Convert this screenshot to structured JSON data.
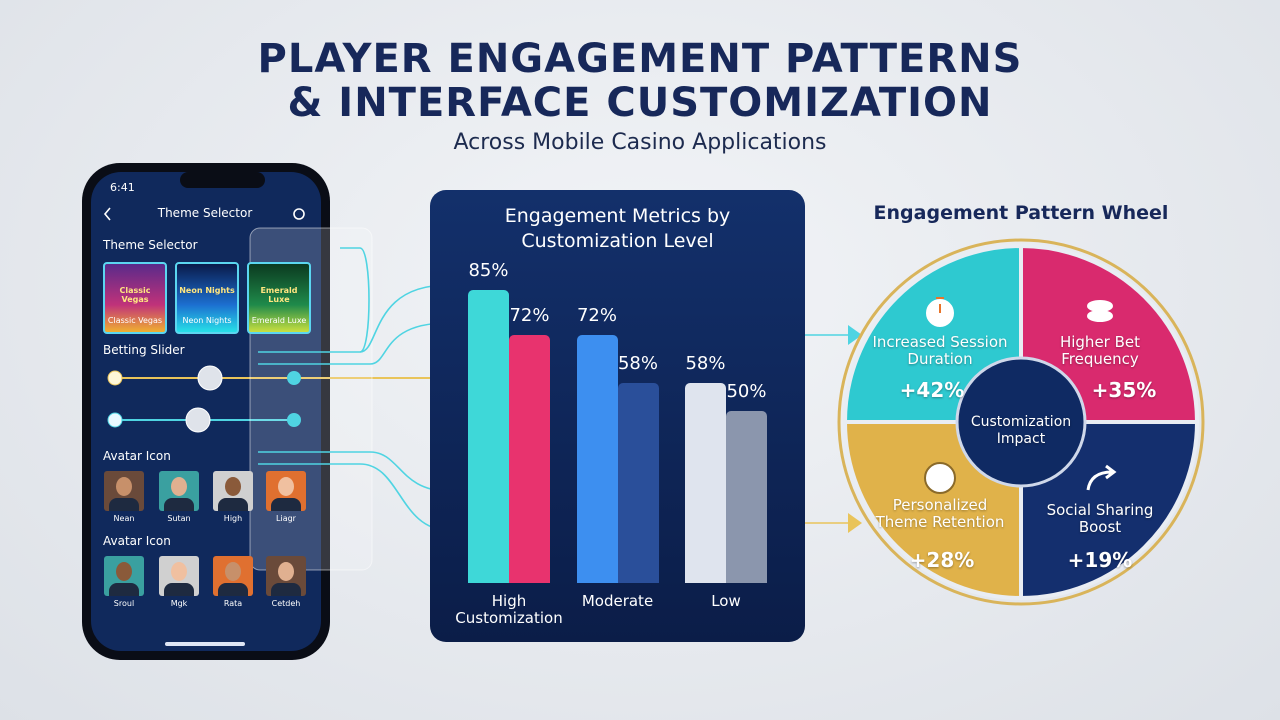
{
  "header": {
    "title_lines": [
      "PLAYER ENGAGEMENT PATTERNS",
      "& INTERFACE CUSTOMIZATION"
    ],
    "subtitle": "Across Mobile Casino Applications"
  },
  "phone": {
    "time": "6:41",
    "screen_title": "Theme Selector",
    "theme_section": "Theme Selector",
    "themes": [
      {
        "banner": "Classic Vegas",
        "caption": "Classic Vegas"
      },
      {
        "banner": "Neon Nights",
        "caption": "Neon Nights"
      },
      {
        "banner": "Emerald Luxe",
        "caption": "Emerald Luxe"
      }
    ],
    "slider_section": "Betting Slider",
    "avatar_sections": [
      {
        "title": "Avatar Icon",
        "names": [
          "Nean",
          "Sutan",
          "High",
          "Liagr"
        ]
      },
      {
        "title": "Avatar Icon",
        "names": [
          "Sroul",
          "Mgk",
          "Rata",
          "Cetdeh"
        ]
      }
    ]
  },
  "chart_data": {
    "type": "bar",
    "title": "Engagement Metrics by Customization Level",
    "categories": [
      "High Customization",
      "Moderate",
      "Low"
    ],
    "series": [
      {
        "colors": [
          "#3ed8d8",
          "#3d8ff0",
          "#dfe4ee"
        ],
        "values": [
          85,
          72,
          58
        ],
        "value_labels": [
          "85%",
          "72%",
          "58%"
        ]
      },
      {
        "colors": [
          "#e8336e",
          "#2a4f9a",
          "#8b96ad"
        ],
        "values": [
          72,
          58,
          50
        ],
        "value_labels": [
          "72%",
          "58%",
          "50%"
        ]
      }
    ],
    "ylim": [
      0,
      100
    ]
  },
  "wheel": {
    "title": "Engagement Pattern Wheel",
    "center": "Customization Impact",
    "segments": [
      {
        "label": "Increased Session Duration",
        "value": "+42%",
        "color": "#2ec9d0"
      },
      {
        "label": "Higher Bet Frequency",
        "value": "+35%",
        "color": "#d92a6e"
      },
      {
        "label": "Personalized Theme Retention",
        "value": "+28%",
        "color": "#e0b24a"
      },
      {
        "label": "Social Sharing Boost",
        "value": "+19%",
        "color": "#142f6e"
      }
    ]
  }
}
